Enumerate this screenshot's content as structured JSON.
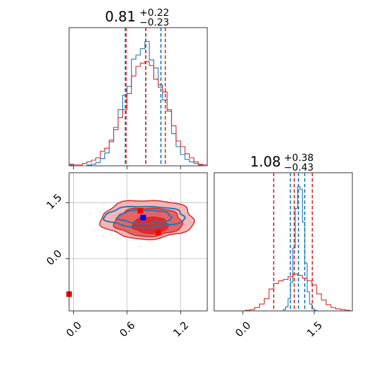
{
  "colors": {
    "blue": "#1f77b4",
    "red": "#d62728",
    "red_light": "#f08080",
    "grid": "#b0b0b0"
  },
  "chart_data": [
    {
      "type": "histogram",
      "panel": "marginal-param-1",
      "title": {
        "main": "0.81",
        "plus": "+0.22",
        "minus": "−0.23"
      },
      "xlim": [
        -0.05,
        1.5
      ],
      "xticks": [
        0.0,
        0.6,
        1.2
      ],
      "quantiles": {
        "blue": [
          0.58,
          0.81,
          0.98
        ],
        "red": [
          0.59,
          0.81,
          1.03
        ]
      },
      "series": [
        {
          "color": "blue",
          "bin_edges_x": [
            -0.05,
            0.0,
            0.05,
            0.1,
            0.15,
            0.2,
            0.25,
            0.3,
            0.35,
            0.4,
            0.45,
            0.5,
            0.55,
            0.6,
            0.65,
            0.7,
            0.75,
            0.8,
            0.85,
            0.9,
            0.95,
            1.0,
            1.05,
            1.1,
            1.15,
            1.2,
            1.25,
            1.3,
            1.35,
            1.4,
            1.45,
            1.5
          ],
          "counts": [
            1,
            0,
            0,
            0,
            1,
            2,
            4,
            9,
            16,
            30,
            48,
            70,
            88,
            99,
            133,
            138,
            146,
            155,
            132,
            122,
            101,
            82,
            70,
            40,
            24,
            14,
            8,
            5,
            3,
            1,
            0
          ]
        },
        {
          "color": "red",
          "bin_edges_x": [
            -0.05,
            0.0,
            0.05,
            0.1,
            0.15,
            0.2,
            0.25,
            0.3,
            0.35,
            0.4,
            0.45,
            0.5,
            0.55,
            0.6,
            0.65,
            0.7,
            0.75,
            0.8,
            0.85,
            0.9,
            0.95,
            1.0,
            1.05,
            1.1,
            1.15,
            1.2,
            1.25,
            1.3,
            1.35,
            1.4,
            1.45,
            1.5
          ],
          "counts": [
            2,
            1,
            1,
            3,
            5,
            7,
            10,
            18,
            22,
            32,
            45,
            60,
            70,
            90,
            112,
            124,
            128,
            130,
            125,
            108,
            98,
            92,
            68,
            50,
            31,
            24,
            15,
            10,
            5,
            2,
            1
          ]
        }
      ]
    },
    {
      "type": "scatter",
      "panel": "joint-2d",
      "xlim": [
        -0.05,
        1.5
      ],
      "ylim": [
        -1.4,
        2.3
      ],
      "xticks": [
        0.0,
        0.6,
        1.2
      ],
      "yticks": [
        0.0,
        1.5
      ],
      "grid": true,
      "contours": [
        {
          "color": "red",
          "level": "outer",
          "cx": 0.83,
          "cy": 1.05,
          "rx": 0.52,
          "ry": 0.52
        },
        {
          "color": "red",
          "level": "middle",
          "cx": 0.84,
          "cy": 0.98,
          "rx": 0.38,
          "ry": 0.38
        },
        {
          "color": "red",
          "level": "inner",
          "cx": 0.86,
          "cy": 0.9,
          "rx": 0.2,
          "ry": 0.22
        },
        {
          "color": "blue",
          "level": "outer",
          "cx": 0.8,
          "cy": 1.12,
          "rx": 0.45,
          "ry": 0.28
        },
        {
          "color": "blue",
          "level": "inner",
          "cx": 0.8,
          "cy": 1.12,
          "rx": 0.3,
          "ry": 0.18
        }
      ],
      "markers": [
        {
          "color": "red",
          "x": 0.75,
          "y": 1.28
        },
        {
          "color": "red",
          "x": 0.95,
          "y": 0.7
        },
        {
          "color": "red",
          "x": -0.05,
          "y": -0.95
        },
        {
          "color": "blue",
          "x": 0.78,
          "y": 1.1
        }
      ]
    },
    {
      "type": "histogram",
      "panel": "marginal-param-2",
      "title": {
        "main": "1.08",
        "plus": "+0.38",
        "minus": "−0.43"
      },
      "xlim": [
        -0.6,
        2.3
      ],
      "xticks": [
        0.0,
        1.5
      ],
      "quantiles": {
        "blue": [
          1.0,
          1.17,
          1.3
        ],
        "red": [
          0.65,
          1.08,
          1.46
        ]
      },
      "series": [
        {
          "color": "blue",
          "bin_edges_x": [
            0.85,
            0.9,
            0.95,
            1.0,
            1.05,
            1.1,
            1.15,
            1.2,
            1.25,
            1.3,
            1.35,
            1.4,
            1.45,
            1.5,
            1.55
          ],
          "counts": [
            2,
            6,
            18,
            42,
            92,
            150,
            182,
            178,
            130,
            70,
            28,
            10,
            3,
            1
          ]
        },
        {
          "color": "red",
          "bin_edges_x": [
            0.05,
            0.15,
            0.25,
            0.35,
            0.45,
            0.55,
            0.65,
            0.75,
            0.85,
            0.95,
            1.05,
            1.15,
            1.25,
            1.35,
            1.45,
            1.55,
            1.65,
            1.75,
            1.85,
            1.95,
            2.05,
            2.15,
            2.25
          ],
          "counts": [
            1,
            2,
            5,
            10,
            18,
            32,
            40,
            44,
            46,
            50,
            54,
            52,
            48,
            44,
            38,
            25,
            16,
            9,
            5,
            3,
            2,
            1
          ]
        }
      ]
    }
  ]
}
